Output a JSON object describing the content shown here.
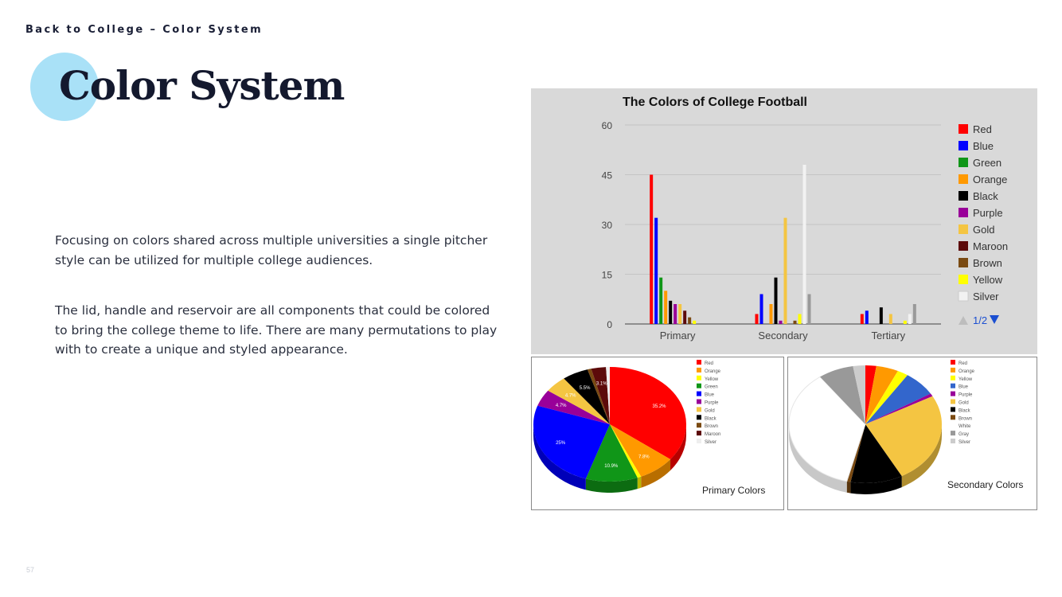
{
  "header": {
    "eyebrow": "Back to College – Color System",
    "title": "Color System"
  },
  "body": {
    "paragraph_1": "Focusing on colors shared across multiple universities a single pitcher style can be utilized for multiple college audiences.",
    "paragraph_2": "The lid, handle and reservoir are all components that could be colored to bring the college theme to life.  There are many permutations to play with to create a unique and styled appearance."
  },
  "footer": {
    "page_number": "57"
  },
  "colors": {
    "accent_circle": "#a9e1f7",
    "chart_background": "#d9d9d9"
  },
  "chart_data": [
    {
      "type": "bar",
      "title": "The Colors of College Football",
      "categories": [
        "Primary",
        "Secondary",
        "Tertiary"
      ],
      "ylim": [
        0,
        60
      ],
      "yticks": [
        0,
        15,
        30,
        45,
        60
      ],
      "grid": true,
      "legend_position": "right",
      "legend_pager": "1/2",
      "series": [
        {
          "name": "Red",
          "color": "#ff0000",
          "values": [
            45,
            3,
            3
          ]
        },
        {
          "name": "Blue",
          "color": "#0000ff",
          "values": [
            32,
            9,
            4
          ]
        },
        {
          "name": "Green",
          "color": "#109618",
          "values": [
            14,
            0,
            0
          ]
        },
        {
          "name": "Orange",
          "color": "#ff9900",
          "values": [
            10,
            6,
            0
          ]
        },
        {
          "name": "Black",
          "color": "#000000",
          "values": [
            7,
            14,
            5
          ]
        },
        {
          "name": "Purple",
          "color": "#990099",
          "values": [
            6,
            1,
            0
          ]
        },
        {
          "name": "Gold",
          "color": "#f4c542",
          "values": [
            6,
            32,
            3
          ]
        },
        {
          "name": "Maroon",
          "color": "#5c0a0a",
          "values": [
            4,
            0,
            0
          ]
        },
        {
          "name": "Brown",
          "color": "#7a4a12",
          "values": [
            2,
            1,
            0
          ]
        },
        {
          "name": "Yellow",
          "color": "#ffff00",
          "values": [
            1,
            3,
            1
          ]
        },
        {
          "name": "Silver",
          "color": "#f2f2f2",
          "values": [
            0,
            48,
            3
          ]
        },
        {
          "name": "",
          "color": "#999999",
          "values": [
            0,
            9,
            6
          ]
        }
      ]
    },
    {
      "type": "pie",
      "title": "Primary Colors",
      "legend": [
        "Red",
        "Orange",
        "Yellow",
        "Green",
        "Blue",
        "Purple",
        "Gold",
        "Black",
        "Brown",
        "Maroon",
        "Silver"
      ],
      "slices": [
        {
          "label": "Red",
          "value": 35.2,
          "display": "35.2%",
          "color": "#ff0000"
        },
        {
          "label": "Orange",
          "value": 7.8,
          "display": "7.8%",
          "color": "#ff9900"
        },
        {
          "label": "Yellow",
          "value": 0.8,
          "display": "",
          "color": "#ffff00"
        },
        {
          "label": "Green",
          "value": 10.9,
          "display": "10.9%",
          "color": "#109618"
        },
        {
          "label": "Blue",
          "value": 25,
          "display": "25%",
          "color": "#0000ff"
        },
        {
          "label": "Purple",
          "value": 4.7,
          "display": "4.7%",
          "color": "#990099"
        },
        {
          "label": "Gold",
          "value": 4.7,
          "display": "4.7%",
          "color": "#f4c542"
        },
        {
          "label": "Black",
          "value": 5.5,
          "display": "5.5%",
          "color": "#000000"
        },
        {
          "label": "Brown",
          "value": 0.8,
          "display": "",
          "color": "#7a4a12"
        },
        {
          "label": "Maroon",
          "value": 3.1,
          "display": "3.1%",
          "color": "#5c0a0a"
        },
        {
          "label": "Silver",
          "value": 0.8,
          "display": "",
          "color": "#eeeeee"
        }
      ]
    },
    {
      "type": "pie",
      "title": "Secondary Colors",
      "legend": [
        "Red",
        "Orange",
        "Yellow",
        "Blue",
        "Purple",
        "Gold",
        "Black",
        "Brown",
        "White",
        "Gray",
        "Silver"
      ],
      "slices": [
        {
          "label": "Red",
          "value": 2.3,
          "display": "",
          "color": "#ff0000"
        },
        {
          "label": "Orange",
          "value": 4.7,
          "display": "",
          "color": "#ff9900"
        },
        {
          "label": "Yellow",
          "value": 2.3,
          "display": "",
          "color": "#ffff00"
        },
        {
          "label": "Blue",
          "value": 7,
          "display": "",
          "color": "#3366cc"
        },
        {
          "label": "Purple",
          "value": 0.8,
          "display": "",
          "color": "#990099"
        },
        {
          "label": "Gold",
          "value": 25,
          "display": "",
          "color": "#f4c542"
        },
        {
          "label": "Black",
          "value": 11,
          "display": "",
          "color": "#000000"
        },
        {
          "label": "Brown",
          "value": 0.8,
          "display": "",
          "color": "#7a4a12"
        },
        {
          "label": "White",
          "value": 36,
          "display": "",
          "color": "#ffffff"
        },
        {
          "label": "Gray",
          "value": 7.5,
          "display": "",
          "color": "#999999"
        },
        {
          "label": "Silver",
          "value": 2.6,
          "display": "",
          "color": "#cccccc"
        }
      ]
    }
  ]
}
